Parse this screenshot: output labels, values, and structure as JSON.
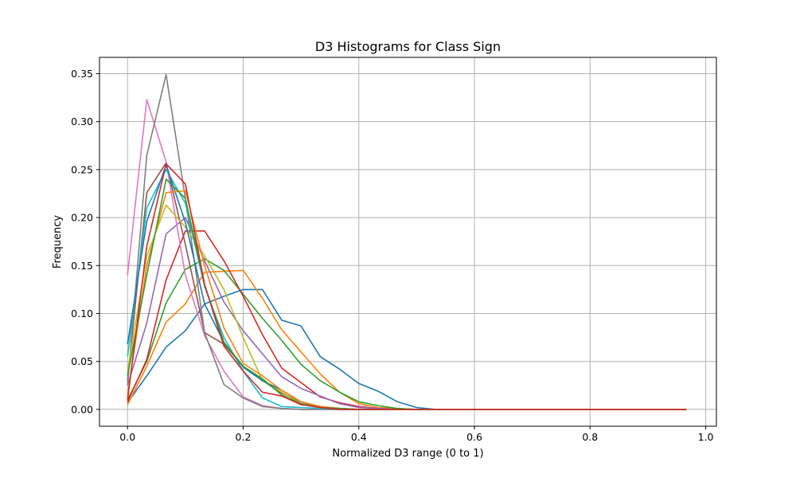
{
  "chart_data": {
    "type": "line",
    "title": "D3 Histograms for Class Sign",
    "xlabel": "Normalized D3 range (0 to 1)",
    "ylabel": "Frequency",
    "xlim": [
      -0.0485,
      1.0185
    ],
    "ylim": [
      -0.0175,
      0.367
    ],
    "grid": true,
    "x_ticks": [
      "0.0",
      "0.2",
      "0.4",
      "0.6",
      "0.8",
      "1.0"
    ],
    "x_tick_values": [
      0.0,
      0.2,
      0.4,
      0.6,
      0.8,
      1.0
    ],
    "y_ticks": [
      "0.00",
      "0.05",
      "0.10",
      "0.15",
      "0.20",
      "0.25",
      "0.30",
      "0.35"
    ],
    "y_tick_values": [
      0.0,
      0.05,
      0.1,
      0.15,
      0.2,
      0.25,
      0.3,
      0.35
    ],
    "x": [
      0.0,
      0.0333,
      0.0667,
      0.1,
      0.1333,
      0.1667,
      0.2,
      0.2333,
      0.2667,
      0.3,
      0.3333,
      0.3667,
      0.4,
      0.4333,
      0.4667,
      0.5,
      0.5333,
      0.5667,
      0.6,
      0.6333,
      0.6667,
      0.7,
      0.7333,
      0.7667,
      0.8,
      0.8333,
      0.8667,
      0.9,
      0.9333,
      0.9667
    ],
    "series": [
      {
        "color": "#1f77b4",
        "values": [
          0.007,
          0.035,
          0.065,
          0.082,
          0.11,
          0.118,
          0.125,
          0.125,
          0.093,
          0.087,
          0.055,
          0.042,
          0.027,
          0.019,
          0.008,
          0.002,
          0,
          0,
          0,
          0,
          0,
          0,
          0,
          0,
          0,
          0,
          0,
          0,
          0,
          0
        ]
      },
      {
        "color": "#ff7f0e",
        "values": [
          0.005,
          0.045,
          0.091,
          0.11,
          0.143,
          0.144,
          0.145,
          0.116,
          0.083,
          0.06,
          0.037,
          0.018,
          0.006,
          0.002,
          0.001,
          0,
          0,
          0,
          0,
          0,
          0,
          0,
          0,
          0,
          0,
          0,
          0,
          0,
          0,
          0
        ]
      },
      {
        "color": "#2ca02c",
        "values": [
          0.01,
          0.05,
          0.111,
          0.146,
          0.157,
          0.145,
          0.12,
          0.095,
          0.072,
          0.047,
          0.03,
          0.018,
          0.008,
          0.004,
          0.001,
          0,
          0,
          0,
          0,
          0,
          0,
          0,
          0,
          0,
          0,
          0,
          0,
          0,
          0,
          0
        ]
      },
      {
        "color": "#d62728",
        "values": [
          0.008,
          0.052,
          0.135,
          0.186,
          0.186,
          0.155,
          0.118,
          0.078,
          0.043,
          0.028,
          0.013,
          0.007,
          0.003,
          0.001,
          0,
          0,
          0,
          0,
          0,
          0,
          0,
          0,
          0,
          0,
          0,
          0,
          0,
          0,
          0,
          0
        ]
      },
      {
        "color": "#9467bd",
        "values": [
          0.025,
          0.09,
          0.183,
          0.2,
          0.155,
          0.112,
          0.082,
          0.058,
          0.034,
          0.022,
          0.014,
          0.006,
          0.002,
          0.001,
          0,
          0,
          0,
          0,
          0,
          0,
          0,
          0,
          0,
          0,
          0,
          0,
          0,
          0,
          0,
          0
        ]
      },
      {
        "color": "#8c564b",
        "values": [
          0.03,
          0.226,
          0.257,
          0.172,
          0.08,
          0.068,
          0.045,
          0.03,
          0.017,
          0.008,
          0.003,
          0.001,
          0,
          0,
          0,
          0,
          0,
          0,
          0,
          0,
          0,
          0,
          0,
          0,
          0,
          0,
          0,
          0,
          0,
          0
        ]
      },
      {
        "color": "#e377c2",
        "values": [
          0.14,
          0.323,
          0.258,
          0.14,
          0.077,
          0.04,
          0.013,
          0.004,
          0.001,
          0,
          0,
          0,
          0,
          0,
          0,
          0,
          0,
          0,
          0,
          0,
          0,
          0,
          0,
          0,
          0,
          0,
          0,
          0,
          0,
          0
        ]
      },
      {
        "color": "#7f7f7f",
        "values": [
          0.025,
          0.265,
          0.349,
          0.22,
          0.08,
          0.026,
          0.012,
          0.003,
          0.001,
          0,
          0,
          0,
          0,
          0,
          0,
          0,
          0,
          0,
          0,
          0,
          0,
          0,
          0,
          0,
          0,
          0,
          0,
          0,
          0,
          0
        ]
      },
      {
        "color": "#bcbd22",
        "values": [
          0.04,
          0.16,
          0.213,
          0.19,
          0.16,
          0.125,
          0.075,
          0.03,
          0.018,
          0.006,
          0.002,
          0.001,
          0,
          0,
          0,
          0,
          0,
          0,
          0,
          0,
          0,
          0,
          0,
          0,
          0,
          0,
          0,
          0,
          0,
          0
        ]
      },
      {
        "color": "#17becf",
        "values": [
          0.055,
          0.21,
          0.25,
          0.215,
          0.128,
          0.075,
          0.04,
          0.012,
          0.003,
          0.002,
          0.001,
          0,
          0,
          0,
          0,
          0,
          0,
          0,
          0,
          0,
          0,
          0,
          0,
          0,
          0,
          0,
          0,
          0,
          0,
          0
        ]
      },
      {
        "color": "#1f77b4",
        "values": [
          0.068,
          0.196,
          0.255,
          0.195,
          0.11,
          0.07,
          0.044,
          0.03,
          0.02,
          0.008,
          0.002,
          0.001,
          0,
          0,
          0,
          0,
          0,
          0,
          0,
          0,
          0,
          0,
          0,
          0,
          0,
          0,
          0,
          0,
          0,
          0
        ]
      },
      {
        "color": "#ff7f0e",
        "values": [
          0.015,
          0.15,
          0.226,
          0.228,
          0.15,
          0.085,
          0.048,
          0.035,
          0.02,
          0.008,
          0.003,
          0.001,
          0,
          0,
          0,
          0,
          0,
          0,
          0,
          0,
          0,
          0,
          0,
          0,
          0,
          0,
          0,
          0,
          0,
          0
        ]
      },
      {
        "color": "#2ca02c",
        "values": [
          0.035,
          0.14,
          0.24,
          0.22,
          0.13,
          0.07,
          0.045,
          0.032,
          0.015,
          0.006,
          0.002,
          0.001,
          0,
          0,
          0,
          0,
          0,
          0,
          0,
          0,
          0,
          0,
          0,
          0,
          0,
          0,
          0,
          0,
          0,
          0
        ]
      },
      {
        "color": "#d62728",
        "values": [
          0.01,
          0.17,
          0.256,
          0.235,
          0.13,
          0.066,
          0.04,
          0.018,
          0.014,
          0.005,
          0.002,
          0,
          0,
          0,
          0,
          0,
          0,
          0,
          0,
          0,
          0,
          0,
          0,
          0,
          0,
          0,
          0,
          0,
          0,
          0
        ]
      }
    ]
  }
}
